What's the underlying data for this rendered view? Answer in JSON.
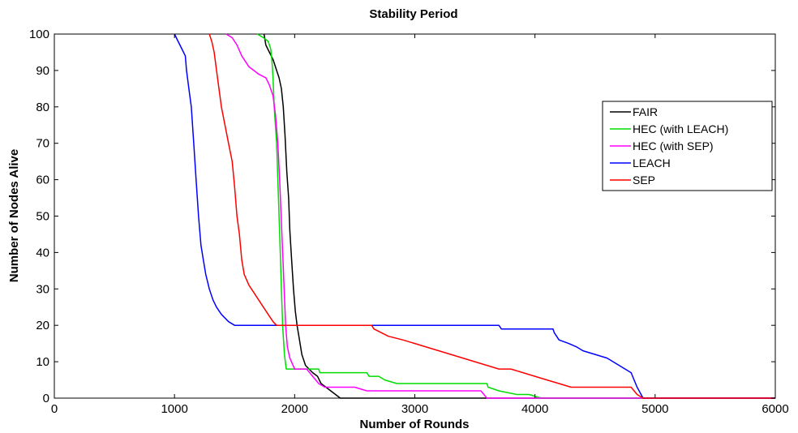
{
  "chart_data": {
    "type": "line",
    "title": "Stability Period",
    "xlabel": "Number of Rounds",
    "ylabel": "Number of Nodes Alive",
    "xlim": [
      0,
      6000
    ],
    "ylim": [
      0,
      100
    ],
    "xticks": [
      0,
      1000,
      2000,
      3000,
      4000,
      5000,
      6000
    ],
    "yticks": [
      0,
      10,
      20,
      30,
      40,
      50,
      60,
      70,
      80,
      90,
      100
    ],
    "grid": false,
    "legend_position": "top-right",
    "series": [
      {
        "name": "FAIR",
        "color": "#000000",
        "points": [
          [
            1745,
            100
          ],
          [
            1760,
            97
          ],
          [
            1790,
            95
          ],
          [
            1820,
            93
          ],
          [
            1850,
            90
          ],
          [
            1870,
            88
          ],
          [
            1890,
            85
          ],
          [
            1905,
            80
          ],
          [
            1920,
            72
          ],
          [
            1935,
            62
          ],
          [
            1950,
            55
          ],
          [
            1960,
            46
          ],
          [
            1975,
            38
          ],
          [
            1990,
            30
          ],
          [
            2005,
            24
          ],
          [
            2020,
            20
          ],
          [
            2040,
            16
          ],
          [
            2060,
            12
          ],
          [
            2090,
            9
          ],
          [
            2120,
            8
          ],
          [
            2150,
            7
          ],
          [
            2190,
            6
          ],
          [
            2220,
            4
          ],
          [
            2260,
            3
          ],
          [
            2300,
            2
          ],
          [
            2340,
            1
          ],
          [
            2380,
            0
          ],
          [
            6000,
            0
          ]
        ]
      },
      {
        "name": "HEC (with LEACH)",
        "color": "#00dd00",
        "points": [
          [
            1690,
            100
          ],
          [
            1740,
            99
          ],
          [
            1780,
            98
          ],
          [
            1800,
            96
          ],
          [
            1810,
            93
          ],
          [
            1820,
            88
          ],
          [
            1830,
            80
          ],
          [
            1840,
            75
          ],
          [
            1850,
            70
          ],
          [
            1860,
            60
          ],
          [
            1870,
            50
          ],
          [
            1880,
            40
          ],
          [
            1890,
            30
          ],
          [
            1900,
            20
          ],
          [
            1915,
            12
          ],
          [
            1930,
            8
          ],
          [
            2200,
            8
          ],
          [
            2210,
            7
          ],
          [
            2600,
            7
          ],
          [
            2620,
            6
          ],
          [
            2700,
            6
          ],
          [
            2750,
            5
          ],
          [
            2850,
            4
          ],
          [
            3600,
            4
          ],
          [
            3610,
            3
          ],
          [
            3700,
            2
          ],
          [
            3850,
            1
          ],
          [
            3950,
            1
          ],
          [
            4050,
            0
          ],
          [
            6000,
            0
          ]
        ]
      },
      {
        "name": "HEC (with SEP)",
        "color": "#ff00ff",
        "points": [
          [
            1430,
            100
          ],
          [
            1480,
            99
          ],
          [
            1520,
            97
          ],
          [
            1560,
            94
          ],
          [
            1620,
            91
          ],
          [
            1660,
            90
          ],
          [
            1700,
            89
          ],
          [
            1760,
            88
          ],
          [
            1790,
            86
          ],
          [
            1820,
            83
          ],
          [
            1840,
            78
          ],
          [
            1860,
            70
          ],
          [
            1875,
            60
          ],
          [
            1885,
            52
          ],
          [
            1895,
            44
          ],
          [
            1905,
            36
          ],
          [
            1915,
            28
          ],
          [
            1925,
            20
          ],
          [
            1940,
            14
          ],
          [
            1960,
            11
          ],
          [
            2000,
            8
          ],
          [
            2100,
            8
          ],
          [
            2150,
            6
          ],
          [
            2200,
            4
          ],
          [
            2250,
            3
          ],
          [
            2500,
            3
          ],
          [
            2600,
            2
          ],
          [
            2800,
            2
          ],
          [
            3550,
            2
          ],
          [
            3600,
            0
          ],
          [
            6000,
            0
          ]
        ]
      },
      {
        "name": "LEACH",
        "color": "#0000ff",
        "points": [
          [
            1000,
            100
          ],
          [
            1030,
            98
          ],
          [
            1060,
            96
          ],
          [
            1090,
            94
          ],
          [
            1100,
            90
          ],
          [
            1120,
            85
          ],
          [
            1140,
            80
          ],
          [
            1160,
            70
          ],
          [
            1180,
            60
          ],
          [
            1200,
            50
          ],
          [
            1220,
            42
          ],
          [
            1240,
            38
          ],
          [
            1260,
            34
          ],
          [
            1290,
            30
          ],
          [
            1320,
            27
          ],
          [
            1350,
            25
          ],
          [
            1390,
            23
          ],
          [
            1450,
            21
          ],
          [
            1500,
            20
          ],
          [
            3700,
            20
          ],
          [
            3720,
            19
          ],
          [
            4150,
            19
          ],
          [
            4160,
            18
          ],
          [
            4200,
            16
          ],
          [
            4280,
            15
          ],
          [
            4350,
            14
          ],
          [
            4400,
            13
          ],
          [
            4500,
            12
          ],
          [
            4600,
            11
          ],
          [
            4700,
            9
          ],
          [
            4800,
            7
          ],
          [
            4850,
            3
          ],
          [
            4900,
            0
          ],
          [
            6000,
            0
          ]
        ]
      },
      {
        "name": "SEP",
        "color": "#ff0000",
        "points": [
          [
            1290,
            100
          ],
          [
            1310,
            98
          ],
          [
            1330,
            95
          ],
          [
            1350,
            90
          ],
          [
            1370,
            85
          ],
          [
            1390,
            80
          ],
          [
            1420,
            75
          ],
          [
            1450,
            70
          ],
          [
            1480,
            65
          ],
          [
            1500,
            58
          ],
          [
            1520,
            50
          ],
          [
            1540,
            45
          ],
          [
            1560,
            38
          ],
          [
            1580,
            34
          ],
          [
            1620,
            31
          ],
          [
            1660,
            29
          ],
          [
            1700,
            27
          ],
          [
            1740,
            25
          ],
          [
            1780,
            23
          ],
          [
            1820,
            21
          ],
          [
            1850,
            20
          ],
          [
            2640,
            20
          ],
          [
            2660,
            19
          ],
          [
            2720,
            18
          ],
          [
            2780,
            17
          ],
          [
            2900,
            16
          ],
          [
            3000,
            15
          ],
          [
            3100,
            14
          ],
          [
            3200,
            13
          ],
          [
            3300,
            12
          ],
          [
            3400,
            11
          ],
          [
            3500,
            10
          ],
          [
            3600,
            9
          ],
          [
            3700,
            8
          ],
          [
            3800,
            8
          ],
          [
            3900,
            7
          ],
          [
            4000,
            6
          ],
          [
            4100,
            5
          ],
          [
            4200,
            4
          ],
          [
            4300,
            3
          ],
          [
            4800,
            3
          ],
          [
            4850,
            1
          ],
          [
            4900,
            0
          ],
          [
            6000,
            0
          ]
        ]
      }
    ]
  }
}
